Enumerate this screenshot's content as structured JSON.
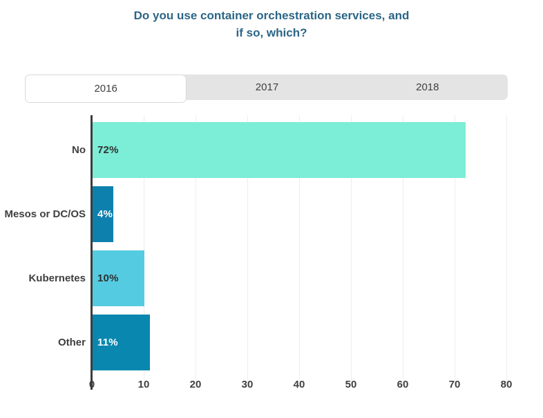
{
  "title": {
    "line1": "Do you use container orchestration services, and",
    "line2": "if so, which?"
  },
  "tabs": {
    "items": [
      "2016",
      "2017",
      "2018"
    ],
    "active_index": 0
  },
  "colors": {
    "title_text": "#2B6586",
    "tab_strip_bg": "#E4E4E4",
    "tab_active_bg": "#FFFFFF",
    "tab_text": "#3F3F3F",
    "axis_line": "#3C3C3C",
    "grid_line": "#EDEDED",
    "tick_text": "#3F3F3F"
  },
  "chart_data": {
    "type": "bar",
    "orientation": "horizontal",
    "title": "Do you use container orchestration services, and if so, which?",
    "categories": [
      "No",
      "Mesos or DC/OS",
      "Kubernetes",
      "Other"
    ],
    "values": [
      72,
      4,
      10,
      11
    ],
    "value_labels": [
      "72%",
      "4%",
      "10%",
      "11%"
    ],
    "bar_colors": [
      "#7CEDD6",
      "#0E80AD",
      "#55CBE1",
      "#0A87AE"
    ],
    "value_label_colors": [
      "#2F2F2F",
      "#FFFFFF",
      "#2F2F2F",
      "#FFFFFF"
    ],
    "xlabel": "",
    "ylabel": "",
    "xlim": [
      0,
      80
    ],
    "x_ticks": [
      0,
      10,
      20,
      30,
      40,
      50,
      60,
      70,
      80
    ],
    "grid": "vertical",
    "legend": "none"
  }
}
